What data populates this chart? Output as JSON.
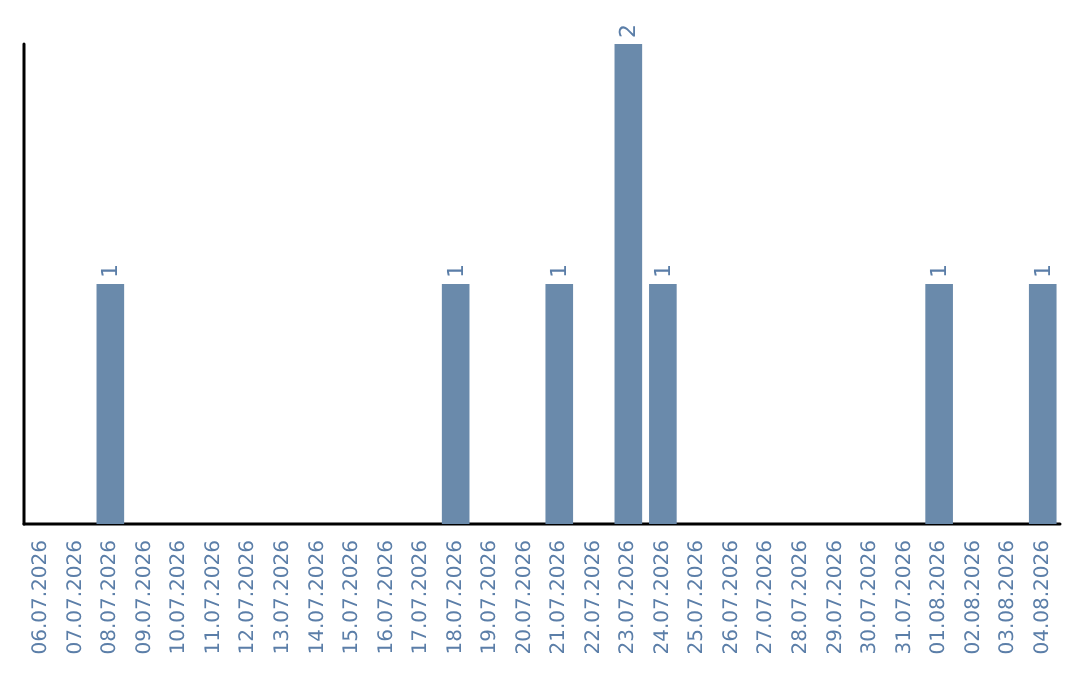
{
  "chart_data": {
    "type": "bar",
    "categories": [
      "06.07.2026",
      "07.07.2026",
      "08.07.2026",
      "09.07.2026",
      "10.07.2026",
      "11.07.2026",
      "12.07.2026",
      "13.07.2026",
      "14.07.2026",
      "15.07.2026",
      "16.07.2026",
      "17.07.2026",
      "18.07.2026",
      "19.07.2026",
      "20.07.2026",
      "21.07.2026",
      "22.07.2026",
      "23.07.2026",
      "24.07.2026",
      "25.07.2026",
      "26.07.2026",
      "27.07.2026",
      "28.07.2026",
      "29.07.2026",
      "30.07.2026",
      "31.07.2026",
      "01.08.2026",
      "02.08.2026",
      "03.08.2026",
      "04.08.2026"
    ],
    "values": [
      0,
      0,
      1,
      0,
      0,
      0,
      0,
      0,
      0,
      0,
      0,
      0,
      1,
      0,
      0,
      1,
      0,
      2,
      1,
      0,
      0,
      0,
      0,
      0,
      0,
      0,
      1,
      0,
      0,
      1
    ],
    "value_labels": [
      null,
      null,
      "1",
      null,
      null,
      null,
      null,
      null,
      null,
      null,
      null,
      null,
      "1",
      null,
      null,
      "1",
      null,
      "2",
      "1",
      null,
      null,
      null,
      null,
      null,
      null,
      null,
      "1",
      null,
      null,
      "1"
    ],
    "color": "#6a8aab",
    "tick_labels": "x"
  }
}
